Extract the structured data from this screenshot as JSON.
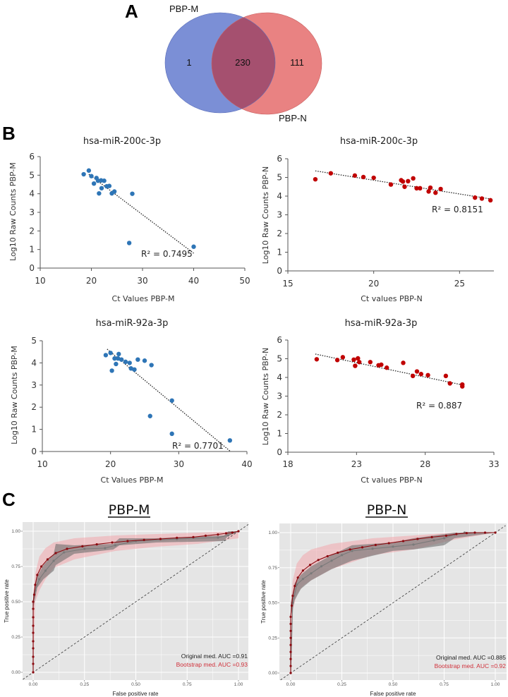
{
  "panels": {
    "a": "A",
    "b": "B",
    "c": "C"
  },
  "venn": {
    "set_left": "PBP-M",
    "set_right": "PBP-N",
    "only_left": "1",
    "both": "230",
    "only_right": "111",
    "colors": {
      "left": "#7b8fd6",
      "right": "#e98282",
      "overlap": "#a5506f"
    }
  },
  "chart_data": [
    {
      "type": "scatter",
      "title": "hsa-miR-200c-3p",
      "xlabel": "Ct Values PBP-M",
      "ylabel": "Log10 Raw Counts PBP-M",
      "xlim": [
        10,
        50
      ],
      "ylim": [
        0,
        6
      ],
      "xticks": [
        "10",
        "20",
        "30",
        "40",
        "50"
      ],
      "yticks": [
        "0",
        "1",
        "2",
        "3",
        "4",
        "5",
        "6"
      ],
      "annotation": "R² = 0.7495",
      "color": "#2e75b6",
      "trendline": [
        [
          19.5,
          5.05
        ],
        [
          40,
          0.8
        ]
      ],
      "points": [
        [
          18.5,
          5.05
        ],
        [
          19.5,
          5.25
        ],
        [
          20,
          4.95
        ],
        [
          21,
          4.85
        ],
        [
          20.5,
          4.55
        ],
        [
          21.3,
          4.7
        ],
        [
          21.9,
          4.72
        ],
        [
          22.5,
          4.7
        ],
        [
          22,
          4.3
        ],
        [
          21.5,
          4.02
        ],
        [
          23,
          4.4
        ],
        [
          23.5,
          4.42
        ],
        [
          24,
          4.02
        ],
        [
          24.5,
          4.12
        ],
        [
          28,
          4.0
        ],
        [
          27.4,
          1.35
        ],
        [
          40,
          1.15
        ]
      ]
    },
    {
      "type": "scatter",
      "title": "hsa-miR-200c-3p",
      "xlabel": "Ct values PBP-N",
      "ylabel": "Log10 Raw Counts PBP-N",
      "xlim": [
        15,
        27
      ],
      "ylim": [
        0,
        6
      ],
      "xticks": [
        "15",
        "20",
        "25"
      ],
      "yticks": [
        "0",
        "1",
        "2",
        "3",
        "4",
        "5",
        "6"
      ],
      "annotation": "R² = 0.8151",
      "color": "#c00000",
      "trendline": [
        [
          16.6,
          5.35
        ],
        [
          26.8,
          3.85
        ]
      ],
      "points": [
        [
          16.6,
          4.9
        ],
        [
          17.5,
          5.22
        ],
        [
          18.9,
          5.1
        ],
        [
          19.4,
          5.02
        ],
        [
          20,
          4.98
        ],
        [
          21,
          4.62
        ],
        [
          21.6,
          4.85
        ],
        [
          21.7,
          4.78
        ],
        [
          21.8,
          4.5
        ],
        [
          22,
          4.8
        ],
        [
          22.3,
          4.95
        ],
        [
          22.5,
          4.42
        ],
        [
          22.7,
          4.42
        ],
        [
          23.2,
          4.25
        ],
        [
          23.3,
          4.45
        ],
        [
          23.6,
          4.18
        ],
        [
          23.9,
          4.38
        ],
        [
          25.9,
          3.92
        ],
        [
          26.3,
          3.87
        ],
        [
          26.8,
          3.78
        ]
      ]
    },
    {
      "type": "scatter",
      "title": "hsa-miR-92a-3p",
      "xlabel": "Ct Values PBP-M",
      "ylabel": "Log10 Raw Counts PBP-M",
      "xlim": [
        10,
        40
      ],
      "ylim": [
        0,
        5
      ],
      "xticks": [
        "10",
        "20",
        "30",
        "40"
      ],
      "yticks": [
        "0",
        "1",
        "2",
        "3",
        "4",
        "5"
      ],
      "annotation": "R² = 0.7701",
      "color": "#2e75b6",
      "trendline": [
        [
          19.5,
          4.62
        ],
        [
          37.6,
          0
        ]
      ],
      "points": [
        [
          19.3,
          4.35
        ],
        [
          20,
          4.45
        ],
        [
          21.2,
          4.4
        ],
        [
          20.6,
          4.2
        ],
        [
          21.1,
          4.2
        ],
        [
          21.6,
          4.15
        ],
        [
          22.2,
          4.05
        ],
        [
          22.8,
          4.0
        ],
        [
          20.8,
          3.95
        ],
        [
          20.2,
          3.65
        ],
        [
          23,
          3.75
        ],
        [
          23.5,
          3.7
        ],
        [
          24,
          4.15
        ],
        [
          25,
          4.1
        ],
        [
          26,
          3.9
        ],
        [
          29,
          2.3
        ],
        [
          25.8,
          1.6
        ],
        [
          29,
          0.8
        ],
        [
          37.5,
          0.5
        ]
      ]
    },
    {
      "type": "scatter",
      "title": "hsa-miR-92a-3p",
      "xlabel": "Ct values  PBP-N",
      "ylabel": "Log10 Raw Counts  PBP-N",
      "xlim": [
        18,
        33
      ],
      "ylim": [
        0,
        6
      ],
      "xticks": [
        "18",
        "23",
        "28",
        "33"
      ],
      "yticks": [
        "0",
        "1",
        "2",
        "3",
        "4",
        "5",
        "6"
      ],
      "annotation": "R² = 0.887",
      "color": "#c00000",
      "trendline": [
        [
          20,
          5.25
        ],
        [
          30.7,
          3.6
        ]
      ],
      "points": [
        [
          20.1,
          4.97
        ],
        [
          21.6,
          4.93
        ],
        [
          22,
          5.08
        ],
        [
          22.8,
          4.95
        ],
        [
          23.1,
          5.02
        ],
        [
          23.2,
          4.82
        ],
        [
          22.9,
          4.62
        ],
        [
          24,
          4.82
        ],
        [
          24.6,
          4.65
        ],
        [
          24.8,
          4.68
        ],
        [
          25.2,
          4.52
        ],
        [
          26.4,
          4.78
        ],
        [
          27.1,
          4.08
        ],
        [
          27.4,
          4.32
        ],
        [
          27.7,
          4.18
        ],
        [
          28.2,
          4.12
        ],
        [
          29.5,
          4.08
        ],
        [
          29.8,
          3.68
        ],
        [
          30.7,
          3.52
        ],
        [
          30.7,
          3.62
        ]
      ]
    },
    {
      "type": "line",
      "title": "PBP-M",
      "xlabel": "False positive rate",
      "ylabel": "True positive rate",
      "xlim": [
        0,
        1
      ],
      "ylim": [
        0,
        1
      ],
      "xticks": [
        "0.00",
        "0.25",
        "0.50",
        "0.75",
        "1.00"
      ],
      "yticks": [
        "0.00",
        "0.25",
        "0.50",
        "0.75",
        "1.00"
      ],
      "grid": true,
      "diagonal": true,
      "annotations": [
        {
          "text": "Original med. AUC =0.91",
          "color": "#222222"
        },
        {
          "text": "Bootstrap med. AUC =0.93",
          "color": "#d0303a"
        }
      ],
      "series": [
        {
          "color": "#8b0a10",
          "points": [
            [
              0,
              0
            ],
            [
              0,
              0.06
            ],
            [
              0,
              0.11
            ],
            [
              0,
              0.17
            ],
            [
              0,
              0.22
            ],
            [
              0,
              0.28
            ],
            [
              0,
              0.33
            ],
            [
              0,
              0.39
            ],
            [
              0,
              0.45
            ],
            [
              0,
              0.5
            ],
            [
              0.005,
              0.55
            ],
            [
              0.01,
              0.62
            ],
            [
              0.02,
              0.69
            ],
            [
              0.04,
              0.75
            ],
            [
              0.07,
              0.8
            ],
            [
              0.11,
              0.845
            ],
            [
              0.165,
              0.875
            ],
            [
              0.24,
              0.893
            ],
            [
              0.31,
              0.907
            ],
            [
              0.385,
              0.92
            ],
            [
              0.46,
              0.93
            ],
            [
              0.54,
              0.938
            ],
            [
              0.62,
              0.945
            ],
            [
              0.7,
              0.953
            ],
            [
              0.78,
              0.958
            ],
            [
              0.84,
              0.968
            ],
            [
              0.9,
              0.977
            ],
            [
              0.94,
              0.985
            ],
            [
              0.97,
              0.99
            ],
            [
              1,
              1
            ]
          ]
        },
        {
          "color": "#7a7a7a",
          "points": [
            [
              0,
              0
            ],
            [
              0,
              0.5
            ],
            [
              0.01,
              0.58
            ],
            [
              0.03,
              0.66
            ],
            [
              0.06,
              0.72
            ],
            [
              0.1,
              0.79
            ],
            [
              0.15,
              0.85
            ],
            [
              0.25,
              0.875
            ],
            [
              0.35,
              0.88
            ],
            [
              0.4,
              0.9
            ],
            [
              0.5,
              0.93
            ],
            [
              0.7,
              0.945
            ],
            [
              0.9,
              0.955
            ],
            [
              0.95,
              0.97
            ],
            [
              1,
              1
            ]
          ]
        }
      ],
      "bands": [
        {
          "color": "#f2a7ad",
          "points": [
            [
              0,
              0,
              0.55
            ],
            [
              0.01,
              0.5,
              0.7
            ],
            [
              0.03,
              0.58,
              0.82
            ],
            [
              0.06,
              0.66,
              0.88
            ],
            [
              0.1,
              0.74,
              0.92
            ],
            [
              0.2,
              0.8,
              0.95
            ],
            [
              0.4,
              0.86,
              0.97
            ],
            [
              0.6,
              0.89,
              0.98
            ],
            [
              0.8,
              0.91,
              0.99
            ],
            [
              1,
              0.95,
              1
            ]
          ]
        },
        {
          "color": "#6e6e6e",
          "points": [
            [
              0,
              0.45,
              0.55
            ],
            [
              0.02,
              0.6,
              0.68
            ],
            [
              0.05,
              0.66,
              0.76
            ],
            [
              0.1,
              0.72,
              0.84
            ],
            [
              0.11,
              0.76,
              0.91
            ],
            [
              0.2,
              0.84,
              0.9
            ],
            [
              0.39,
              0.87,
              0.91
            ],
            [
              0.42,
              0.9,
              0.95
            ],
            [
              0.6,
              0.92,
              0.95
            ],
            [
              0.93,
              0.93,
              0.97
            ],
            [
              0.95,
              0.97,
              1
            ],
            [
              1,
              1,
              1
            ]
          ]
        }
      ]
    },
    {
      "type": "line",
      "title": "PBP-N",
      "xlabel": "False positive rate",
      "ylabel": "True positive rate",
      "xlim": [
        0,
        1
      ],
      "ylim": [
        0,
        1
      ],
      "xticks": [
        "0.00",
        "0.25",
        "0.50",
        "0.75",
        "1.00"
      ],
      "yticks": [
        "0.00",
        "0.25",
        "0.50",
        "0.75",
        "1.00"
      ],
      "grid": true,
      "diagonal": true,
      "annotations": [
        {
          "text": "Original med. AUC =0.885",
          "color": "#222222"
        },
        {
          "text": "Bootstrap med. AUC =0.92",
          "color": "#d0303a"
        }
      ],
      "series": [
        {
          "color": "#8b0a10",
          "points": [
            [
              0,
              0
            ],
            [
              0,
              0.05
            ],
            [
              0,
              0.1
            ],
            [
              0,
              0.15
            ],
            [
              0,
              0.2
            ],
            [
              0,
              0.25
            ],
            [
              0,
              0.3
            ],
            [
              0,
              0.35
            ],
            [
              0,
              0.4
            ],
            [
              0.005,
              0.48
            ],
            [
              0.01,
              0.55
            ],
            [
              0.02,
              0.62
            ],
            [
              0.035,
              0.68
            ],
            [
              0.06,
              0.73
            ],
            [
              0.095,
              0.77
            ],
            [
              0.135,
              0.805
            ],
            [
              0.18,
              0.832
            ],
            [
              0.23,
              0.857
            ],
            [
              0.29,
              0.88
            ],
            [
              0.35,
              0.895
            ],
            [
              0.415,
              0.912
            ],
            [
              0.48,
              0.925
            ],
            [
              0.55,
              0.94
            ],
            [
              0.62,
              0.955
            ],
            [
              0.69,
              0.968
            ],
            [
              0.76,
              0.978
            ],
            [
              0.81,
              0.99
            ],
            [
              0.86,
              0.997
            ],
            [
              0.9,
              1
            ],
            [
              0.95,
              1
            ],
            [
              1,
              1
            ]
          ]
        },
        {
          "color": "#7a7a7a",
          "points": [
            [
              0,
              0
            ],
            [
              0.01,
              0.5
            ],
            [
              0.03,
              0.63
            ],
            [
              0.06,
              0.67
            ],
            [
              0.1,
              0.71
            ],
            [
              0.15,
              0.76
            ],
            [
              0.2,
              0.8
            ],
            [
              0.25,
              0.84
            ],
            [
              0.3,
              0.87
            ],
            [
              0.4,
              0.885
            ],
            [
              0.5,
              0.9
            ],
            [
              0.6,
              0.915
            ],
            [
              0.7,
              0.945
            ],
            [
              0.75,
              0.96
            ],
            [
              0.8,
              0.985
            ],
            [
              0.85,
              1
            ],
            [
              1,
              1
            ]
          ]
        }
      ],
      "bands": [
        {
          "color": "#f2a7ad",
          "points": [
            [
              0,
              0,
              0.5
            ],
            [
              0.01,
              0.45,
              0.66
            ],
            [
              0.03,
              0.56,
              0.78
            ],
            [
              0.06,
              0.62,
              0.84
            ],
            [
              0.1,
              0.66,
              0.88
            ],
            [
              0.2,
              0.74,
              0.92
            ],
            [
              0.4,
              0.84,
              0.96
            ],
            [
              0.6,
              0.88,
              0.98
            ],
            [
              0.8,
              0.95,
              1
            ],
            [
              1,
              1,
              1
            ]
          ]
        },
        {
          "color": "#6e6e6e",
          "points": [
            [
              0,
              0.4,
              0.5
            ],
            [
              0.02,
              0.52,
              0.64
            ],
            [
              0.05,
              0.6,
              0.7
            ],
            [
              0.1,
              0.66,
              0.76
            ],
            [
              0.2,
              0.74,
              0.84
            ],
            [
              0.3,
              0.8,
              0.91
            ],
            [
              0.5,
              0.87,
              0.93
            ],
            [
              0.6,
              0.88,
              0.96
            ],
            [
              0.75,
              0.91,
              0.99
            ],
            [
              0.8,
              0.96,
              1
            ],
            [
              1,
              1,
              1
            ]
          ]
        }
      ]
    }
  ]
}
